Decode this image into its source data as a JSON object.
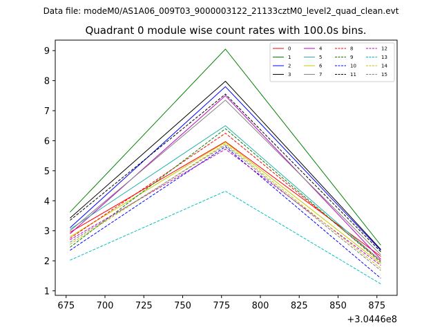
{
  "figure": {
    "suptitle": "Data file: modeM0/AS1A06_009T03_9000003122_21133cztM0_level2_quad_clean.evt"
  },
  "chart_data": {
    "type": "line",
    "title": "Quadrant 0 module wise count rates with 100.0s bins.",
    "xlabel": "",
    "ylabel": "",
    "x_offset_label": "+3.0446e8",
    "x": [
      677.5,
      777.5,
      877.5
    ],
    "xlim": [
      668,
      888
    ],
    "ylim": [
      0.85,
      9.35
    ],
    "xticks": [
      675,
      700,
      725,
      750,
      775,
      800,
      825,
      850,
      875
    ],
    "xtick_labels": [
      "675",
      "700",
      "725",
      "750",
      "775",
      "800",
      "825",
      "850",
      "875"
    ],
    "yticks": [
      1,
      2,
      3,
      4,
      5,
      6,
      7,
      8,
      9
    ],
    "ytick_labels": [
      "1",
      "2",
      "3",
      "4",
      "5",
      "6",
      "7",
      "8",
      "9"
    ],
    "grid": false,
    "legend_position": "top-right",
    "legend_columns": 4,
    "series": [
      {
        "name": "0",
        "color": "#ff0000",
        "dash": "solid",
        "values": [
          2.95,
          5.97,
          2.15
        ]
      },
      {
        "name": "1",
        "color": "#008000",
        "dash": "solid",
        "values": [
          3.62,
          9.05,
          2.52
        ]
      },
      {
        "name": "2",
        "color": "#0000ff",
        "dash": "solid",
        "values": [
          3.1,
          7.8,
          2.35
        ]
      },
      {
        "name": "3",
        "color": "#000000",
        "dash": "solid",
        "values": [
          3.42,
          7.98,
          2.38
        ]
      },
      {
        "name": "4",
        "color": "#c000c0",
        "dash": "solid",
        "values": [
          2.9,
          7.5,
          2.05
        ]
      },
      {
        "name": "5",
        "color": "#20b2aa",
        "dash": "solid",
        "values": [
          3.05,
          6.5,
          2.0
        ]
      },
      {
        "name": "6",
        "color": "#c8c800",
        "dash": "solid",
        "values": [
          2.8,
          5.95,
          1.9
        ]
      },
      {
        "name": "7",
        "color": "#808080",
        "dash": "solid",
        "values": [
          3.0,
          7.35,
          2.2
        ]
      },
      {
        "name": "8",
        "color": "#ff0000",
        "dash": "dashed",
        "values": [
          2.75,
          6.25,
          2.0
        ]
      },
      {
        "name": "9",
        "color": "#008000",
        "dash": "dashed",
        "values": [
          2.45,
          6.4,
          1.95
        ]
      },
      {
        "name": "10",
        "color": "#0000ff",
        "dash": "dashed",
        "values": [
          2.35,
          5.8,
          1.42
        ]
      },
      {
        "name": "11",
        "color": "#000000",
        "dash": "dashed",
        "values": [
          3.35,
          7.55,
          2.3
        ]
      },
      {
        "name": "12",
        "color": "#c000c0",
        "dash": "dashed",
        "values": [
          2.7,
          5.72,
          1.85
        ]
      },
      {
        "name": "13",
        "color": "#00bfbf",
        "dash": "dashed",
        "values": [
          2.02,
          4.32,
          1.23
        ]
      },
      {
        "name": "14",
        "color": "#bfbf00",
        "dash": "dashed",
        "values": [
          2.55,
          5.9,
          1.75
        ]
      },
      {
        "name": "15",
        "color": "#808080",
        "dash": "dashed",
        "values": [
          2.62,
          5.85,
          1.68
        ]
      }
    ]
  }
}
